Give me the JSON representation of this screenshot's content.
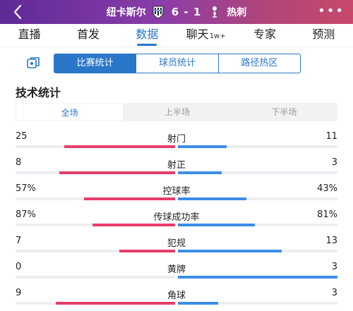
{
  "header": {
    "home_team": "纽卡斯尔",
    "away_team": "热刺",
    "home_score": "6",
    "away_score": "1",
    "score_separator": "-",
    "more": "•••"
  },
  "tabs": [
    {
      "label": "直播"
    },
    {
      "label": "首发"
    },
    {
      "label": "数据",
      "active": true
    },
    {
      "label": "聊天",
      "badge": "1w+"
    },
    {
      "label": "专家"
    },
    {
      "label": "预测"
    }
  ],
  "subtabs": [
    {
      "label": "比赛统计",
      "active": true
    },
    {
      "label": "球员统计"
    },
    {
      "label": "路径热区"
    }
  ],
  "section_title": "技术统计",
  "periods": [
    {
      "label": "全场",
      "active": true
    },
    {
      "label": "上半场"
    },
    {
      "label": "下半场"
    }
  ],
  "colors": {
    "accent": "#2a76c9",
    "home_bar": "#e53e6b",
    "away_bar": "#3b8ee6",
    "header_start": "#5e2a96",
    "header_end": "#c8496a"
  },
  "stats": [
    {
      "label": "射门",
      "home": "25",
      "away": "11",
      "home_value": 25,
      "away_value": 11
    },
    {
      "label": "射正",
      "home": "8",
      "away": "3",
      "home_value": 8,
      "away_value": 3
    },
    {
      "label": "控球率",
      "home": "57%",
      "away": "43%",
      "home_value": 57,
      "away_value": 43
    },
    {
      "label": "传球成功率",
      "home": "87%",
      "away": "81%",
      "home_value": 87,
      "away_value": 81
    },
    {
      "label": "犯规",
      "home": "7",
      "away": "13",
      "home_value": 7,
      "away_value": 13
    },
    {
      "label": "黄牌",
      "home": "0",
      "away": "3",
      "home_value": 0,
      "away_value": 3
    },
    {
      "label": "角球",
      "home": "9",
      "away": "3",
      "home_value": 9,
      "away_value": 3
    }
  ]
}
